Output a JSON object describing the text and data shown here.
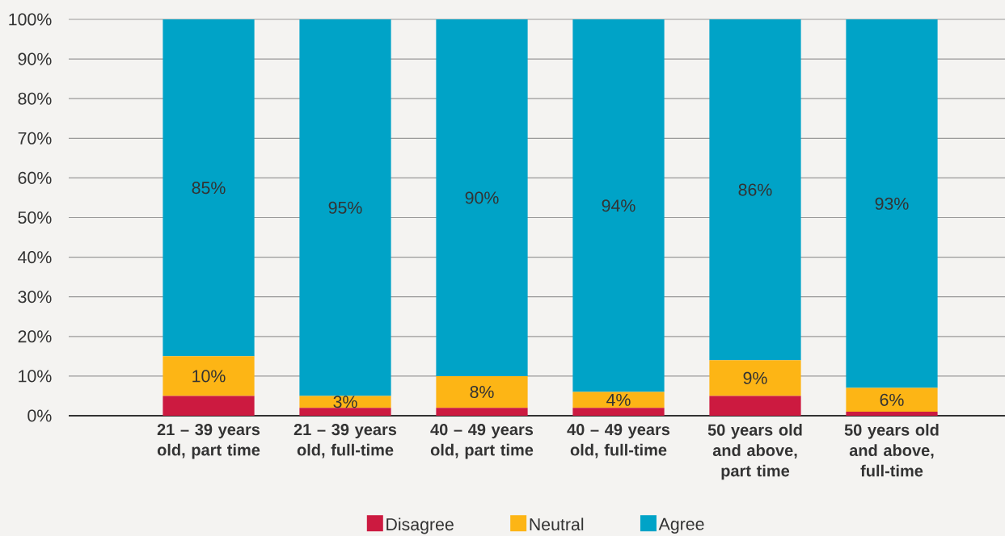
{
  "chart_data": {
    "type": "bar",
    "stacked": true,
    "categories": [
      "21 – 39 years old, part time",
      "21 – 39 years old, full-time",
      "40 – 49 years old, part time",
      "40 – 49 years old, full-time",
      "50 years old and above, part time",
      "50 years old and above, full-time"
    ],
    "series": [
      {
        "name": "Disagree",
        "color": "#cc1a40",
        "values": [
          5,
          2,
          2,
          2,
          5,
          1
        ]
      },
      {
        "name": "Neutral",
        "color": "#fdb515",
        "values": [
          10,
          3,
          8,
          4,
          9,
          6
        ],
        "value_labels": [
          "10%",
          "3%",
          "8%",
          "4%",
          "9%",
          "6%"
        ]
      },
      {
        "name": "Agree",
        "color": "#00a3c7",
        "values": [
          85,
          95,
          90,
          94,
          86,
          93
        ],
        "value_labels": [
          "85%",
          "95%",
          "90%",
          "94%",
          "86%",
          "93%"
        ]
      }
    ],
    "ylim": [
      0,
      100
    ],
    "yticks": [
      {
        "value": 0,
        "label": "0%"
      },
      {
        "value": 10,
        "label": "10%"
      },
      {
        "value": 20,
        "label": "20%"
      },
      {
        "value": 30,
        "label": "30%"
      },
      {
        "value": 40,
        "label": "40%"
      },
      {
        "value": 50,
        "label": "50%"
      },
      {
        "value": 60,
        "label": "60%"
      },
      {
        "value": 70,
        "label": "70%"
      },
      {
        "value": 80,
        "label": "80%"
      },
      {
        "value": 90,
        "label": "90%"
      },
      {
        "value": 100,
        "label": "100%"
      }
    ],
    "grid": "y",
    "legend": "bottom"
  }
}
